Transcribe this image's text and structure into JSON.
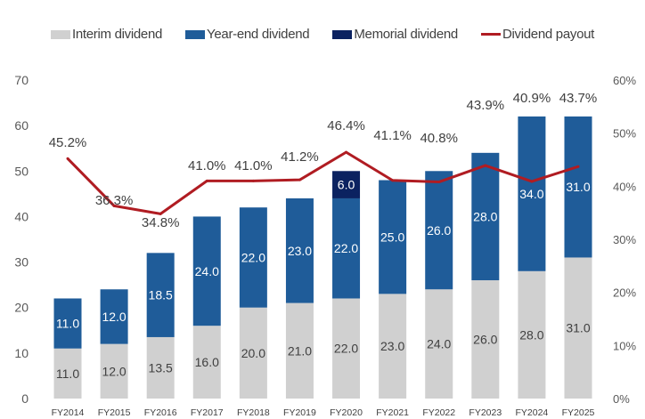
{
  "chart_data": {
    "type": "bar",
    "stacked": true,
    "categories": [
      "FY2014",
      "FY2015",
      "FY2016",
      "FY2017",
      "FY2018",
      "FY2019",
      "FY2020",
      "FY2021",
      "FY2022",
      "FY2023",
      "FY2024",
      "FY2025"
    ],
    "series": [
      {
        "name": "Interim dividend",
        "color": "#d0d0d0",
        "values": [
          11.0,
          12.0,
          13.5,
          16.0,
          20.0,
          21.0,
          22.0,
          23.0,
          24.0,
          26.0,
          28.0,
          31.0
        ]
      },
      {
        "name": "Year-end dividend",
        "color": "#1f5c99",
        "values": [
          11.0,
          12.0,
          18.5,
          24.0,
          22.0,
          23.0,
          22.0,
          25.0,
          26.0,
          28.0,
          34.0,
          31.0
        ]
      },
      {
        "name": "Memorial dividend",
        "color": "#0b2260",
        "values": [
          null,
          null,
          null,
          null,
          null,
          null,
          6.0,
          null,
          null,
          null,
          null,
          null
        ]
      },
      {
        "name": "Dividend payout",
        "type": "line",
        "axis": "right",
        "color": "#b01c22",
        "values": [
          45.2,
          36.3,
          34.8,
          41.0,
          41.0,
          41.2,
          46.4,
          41.1,
          40.8,
          43.9,
          40.9,
          43.7
        ]
      }
    ],
    "ylim": [
      0,
      70
    ],
    "yticks": [
      0,
      10,
      20,
      30,
      40,
      50,
      60,
      70
    ],
    "y2lim": [
      0,
      60
    ],
    "y2ticks": [
      "0%",
      "10%",
      "20%",
      "30%",
      "40%",
      "50%",
      "60%"
    ],
    "grid": false,
    "legend": "top",
    "xlabel": "",
    "ylabel": "",
    "title": ""
  }
}
